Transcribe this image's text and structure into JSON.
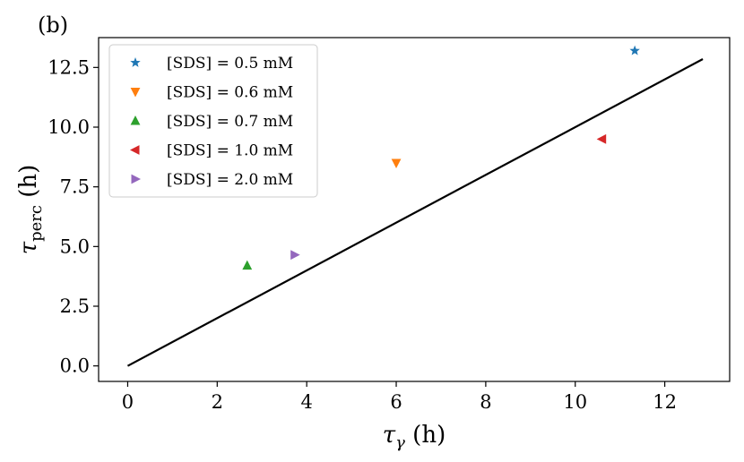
{
  "chart_data": {
    "type": "scatter",
    "panel_label": "(b)",
    "xlabel": {
      "symbol": "τ",
      "subscript": "γ",
      "unit": "(h)"
    },
    "ylabel": {
      "symbol": "τ",
      "subscript": "perc",
      "unit": "(h)"
    },
    "xlim": [
      -0.65,
      13.45
    ],
    "ylim": [
      -0.65,
      13.75
    ],
    "xticks": [
      0,
      2,
      4,
      6,
      8,
      10,
      12
    ],
    "yticks": [
      0.0,
      2.5,
      5.0,
      7.5,
      10.0,
      12.5
    ],
    "xtick_labels": [
      "0",
      "2",
      "4",
      "6",
      "8",
      "10",
      "12"
    ],
    "ytick_labels": [
      "0.0",
      "2.5",
      "5.0",
      "7.5",
      "10.0",
      "12.5"
    ],
    "grid": false,
    "legend_position": "upper-left",
    "series": [
      {
        "name": "[SDS] =  0.5 mM",
        "marker": "star",
        "color": "#1f77b4",
        "x": [
          11.33
        ],
        "y": [
          13.2
        ]
      },
      {
        "name": "[SDS] =  0.6 mM",
        "marker": "triangle-down",
        "color": "#ff7f0e",
        "x": [
          6.0
        ],
        "y": [
          8.5
        ]
      },
      {
        "name": "[SDS] =  0.7 mM",
        "marker": "triangle-up",
        "color": "#2ca02c",
        "x": [
          2.67
        ],
        "y": [
          4.2
        ]
      },
      {
        "name": "[SDS] =  1.0 mM",
        "marker": "triangle-left",
        "color": "#d62728",
        "x": [
          10.6
        ],
        "y": [
          9.5
        ]
      },
      {
        "name": "[SDS] =  2.0 mM",
        "marker": "triangle-right",
        "color": "#9467bd",
        "x": [
          3.73
        ],
        "y": [
          4.65
        ]
      }
    ],
    "reference_line": {
      "x": [
        0,
        12.85
      ],
      "y": [
        0,
        12.85
      ],
      "color": "#000000"
    }
  }
}
